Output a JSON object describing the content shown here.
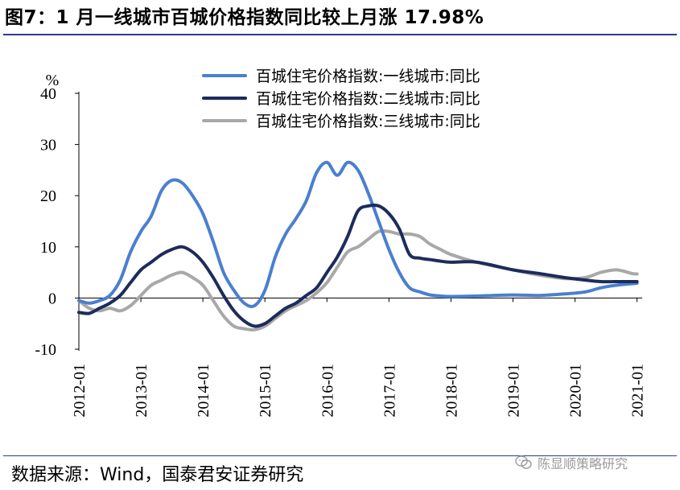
{
  "figure": {
    "title": "图7：1 月一线城市百城价格指数同比较上月涨 17.98%",
    "source": "数据来源：Wind，国泰君安证券研究",
    "watermark": "陈显顺策略研究"
  },
  "colors": {
    "tier1": "#4a7fd0",
    "tier2": "#1c2c5a",
    "tier3": "#a8a8a8",
    "accent_rule": "#2e3a8c"
  },
  "chart_data": {
    "type": "line",
    "title": "图7：1 月一线城市百城价格指数同比较上月涨 17.98%",
    "ylabel": "%",
    "xlabel": "",
    "ylim": [
      -10,
      40
    ],
    "yticks": [
      -10,
      0,
      10,
      20,
      30,
      40
    ],
    "xlim": [
      "2012-01",
      "2021-02"
    ],
    "xticks": [
      "2012-01",
      "2013-01",
      "2014-01",
      "2015-01",
      "2016-01",
      "2017-01",
      "2018-01",
      "2019-01",
      "2020-01",
      "2021-01"
    ],
    "grid": false,
    "legend_position": "top-right",
    "series": [
      {
        "name": "百城住宅价格指数:一线城市:同比",
        "color": "#4a7fd0",
        "points": [
          [
            "2012-01",
            -0.5
          ],
          [
            "2012-03",
            -1.0
          ],
          [
            "2012-05",
            -0.5
          ],
          [
            "2012-07",
            0.5
          ],
          [
            "2012-09",
            3.5
          ],
          [
            "2012-11",
            9.0
          ],
          [
            "2013-01",
            13.0
          ],
          [
            "2013-03",
            16.0
          ],
          [
            "2013-05",
            21.0
          ],
          [
            "2013-07",
            23.0
          ],
          [
            "2013-09",
            22.5
          ],
          [
            "2013-11",
            20.0
          ],
          [
            "2014-01",
            16.5
          ],
          [
            "2014-03",
            11.0
          ],
          [
            "2014-05",
            5.0
          ],
          [
            "2014-07",
            1.5
          ],
          [
            "2014-09",
            -1.0
          ],
          [
            "2014-11",
            -1.5
          ],
          [
            "2015-01",
            1.5
          ],
          [
            "2015-03",
            8.0
          ],
          [
            "2015-05",
            12.5
          ],
          [
            "2015-07",
            15.5
          ],
          [
            "2015-09",
            19.0
          ],
          [
            "2015-11",
            24.5
          ],
          [
            "2016-01",
            26.5
          ],
          [
            "2016-03",
            24.0
          ],
          [
            "2016-05",
            26.5
          ],
          [
            "2016-07",
            25.0
          ],
          [
            "2016-09",
            20.5
          ],
          [
            "2016-11",
            15.0
          ],
          [
            "2017-01",
            9.5
          ],
          [
            "2017-03",
            5.0
          ],
          [
            "2017-05",
            2.0
          ],
          [
            "2017-07",
            1.2
          ],
          [
            "2017-09",
            0.6
          ],
          [
            "2017-11",
            0.4
          ],
          [
            "2018-01",
            0.3
          ],
          [
            "2018-06",
            0.4
          ],
          [
            "2019-01",
            0.6
          ],
          [
            "2019-06",
            0.5
          ],
          [
            "2019-11",
            0.8
          ],
          [
            "2020-03",
            1.2
          ],
          [
            "2020-06",
            2.0
          ],
          [
            "2020-09",
            2.5
          ],
          [
            "2020-12",
            2.8
          ],
          [
            "2021-01",
            2.9
          ]
        ]
      },
      {
        "name": "百城住宅价格指数:二线城市:同比",
        "color": "#1c2c5a",
        "points": [
          [
            "2012-01",
            -2.8
          ],
          [
            "2012-03",
            -3.0
          ],
          [
            "2012-05",
            -2.0
          ],
          [
            "2012-07",
            -1.0
          ],
          [
            "2012-09",
            0.5
          ],
          [
            "2012-11",
            3.0
          ],
          [
            "2013-01",
            5.5
          ],
          [
            "2013-03",
            7.0
          ],
          [
            "2013-05",
            8.5
          ],
          [
            "2013-07",
            9.5
          ],
          [
            "2013-09",
            10.0
          ],
          [
            "2013-11",
            9.0
          ],
          [
            "2014-01",
            7.0
          ],
          [
            "2014-03",
            4.0
          ],
          [
            "2014-05",
            0.5
          ],
          [
            "2014-07",
            -2.5
          ],
          [
            "2014-09",
            -4.5
          ],
          [
            "2014-11",
            -5.5
          ],
          [
            "2015-01",
            -5.0
          ],
          [
            "2015-03",
            -3.5
          ],
          [
            "2015-05",
            -2.0
          ],
          [
            "2015-07",
            -1.0
          ],
          [
            "2015-09",
            0.5
          ],
          [
            "2015-11",
            2.0
          ],
          [
            "2016-01",
            5.0
          ],
          [
            "2016-03",
            8.0
          ],
          [
            "2016-05",
            12.0
          ],
          [
            "2016-07",
            17.0
          ],
          [
            "2016-09",
            18.0
          ],
          [
            "2016-11",
            18.0
          ],
          [
            "2017-01",
            16.5
          ],
          [
            "2017-03",
            13.5
          ],
          [
            "2017-05",
            8.5
          ],
          [
            "2017-07",
            7.8
          ],
          [
            "2017-09",
            7.5
          ],
          [
            "2017-11",
            7.2
          ],
          [
            "2018-01",
            7.0
          ],
          [
            "2018-06",
            7.0
          ],
          [
            "2019-01",
            5.5
          ],
          [
            "2019-06",
            4.8
          ],
          [
            "2019-11",
            4.0
          ],
          [
            "2020-03",
            3.5
          ],
          [
            "2020-06",
            3.2
          ],
          [
            "2020-09",
            3.2
          ],
          [
            "2020-12",
            3.2
          ],
          [
            "2021-01",
            3.2
          ]
        ]
      },
      {
        "name": "百城住宅价格指数:三线城市:同比",
        "color": "#a8a8a8",
        "points": [
          [
            "2012-01",
            -0.5
          ],
          [
            "2012-03",
            -2.0
          ],
          [
            "2012-05",
            -2.5
          ],
          [
            "2012-07",
            -2.0
          ],
          [
            "2012-09",
            -2.5
          ],
          [
            "2012-11",
            -1.5
          ],
          [
            "2013-01",
            0.5
          ],
          [
            "2013-03",
            2.5
          ],
          [
            "2013-05",
            3.5
          ],
          [
            "2013-07",
            4.5
          ],
          [
            "2013-09",
            5.0
          ],
          [
            "2013-11",
            4.0
          ],
          [
            "2014-01",
            2.5
          ],
          [
            "2014-03",
            -0.5
          ],
          [
            "2014-05",
            -3.5
          ],
          [
            "2014-07",
            -5.5
          ],
          [
            "2014-09",
            -6.0
          ],
          [
            "2014-11",
            -6.2
          ],
          [
            "2015-01",
            -5.5
          ],
          [
            "2015-03",
            -4.0
          ],
          [
            "2015-05",
            -2.5
          ],
          [
            "2015-07",
            -1.5
          ],
          [
            "2015-09",
            -0.5
          ],
          [
            "2015-11",
            1.0
          ],
          [
            "2016-01",
            3.0
          ],
          [
            "2016-03",
            6.0
          ],
          [
            "2016-05",
            9.0
          ],
          [
            "2016-07",
            10.0
          ],
          [
            "2016-09",
            11.5
          ],
          [
            "2016-11",
            13.0
          ],
          [
            "2017-01",
            13.0
          ],
          [
            "2017-03",
            12.5
          ],
          [
            "2017-05",
            12.5
          ],
          [
            "2017-07",
            12.0
          ],
          [
            "2017-09",
            10.5
          ],
          [
            "2017-11",
            9.5
          ],
          [
            "2018-01",
            8.5
          ],
          [
            "2018-06",
            7.0
          ],
          [
            "2019-01",
            5.5
          ],
          [
            "2019-06",
            4.5
          ],
          [
            "2019-11",
            3.8
          ],
          [
            "2020-03",
            4.0
          ],
          [
            "2020-06",
            5.0
          ],
          [
            "2020-09",
            5.5
          ],
          [
            "2020-12",
            4.8
          ],
          [
            "2021-01",
            4.7
          ]
        ]
      }
    ]
  }
}
